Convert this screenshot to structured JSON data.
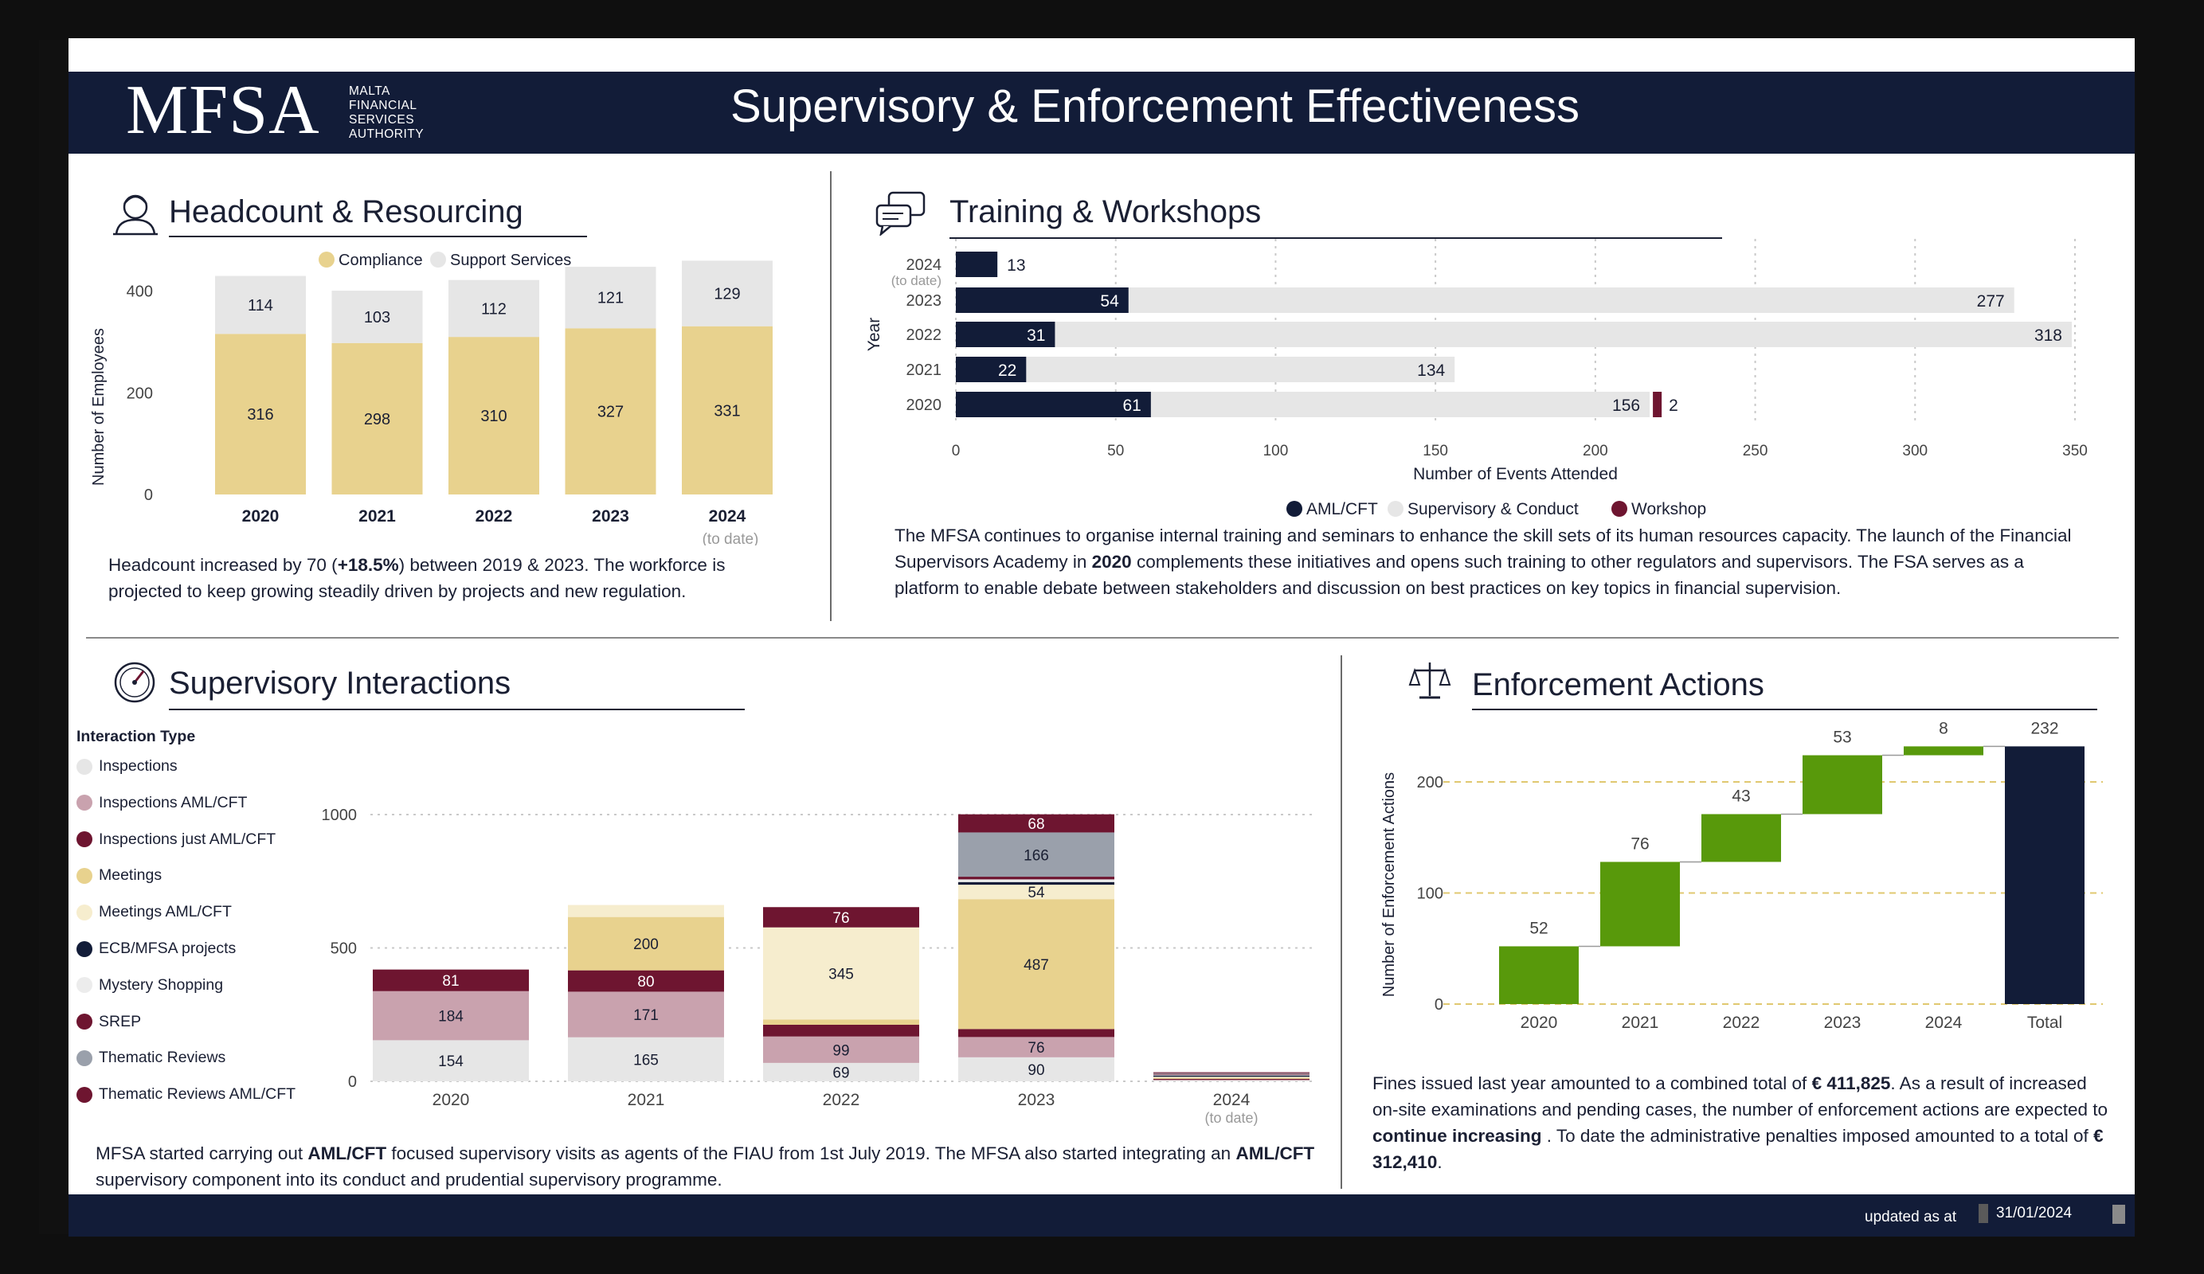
{
  "header": {
    "logo": "MFSA",
    "logo_sub": [
      "MALTA",
      "FINANCIAL",
      "SERVICES",
      "AUTHORITY"
    ],
    "title": "Supervisory & Enforcement Effectiveness"
  },
  "headcount": {
    "title": "Headcount & Resourcing",
    "icon": "person-icon",
    "paragraph_pre": "Headcount increased by 70 (",
    "paragraph_bold": "+18.5%",
    "paragraph_post": ") between 2019 & 2023. The workforce is projected to keep growing steadily driven by projects and new regulation."
  },
  "training": {
    "title": "Training & Workshops",
    "icon": "chat-icon",
    "paragraph_pre": "The MFSA continues to organise internal training and seminars to enhance the skill sets of its human resources capacity. The launch of the Financial Supervisors Academy in ",
    "paragraph_bold": "2020",
    "paragraph_post": " complements these initiatives and opens such training to other regulators and supervisors. The FSA serves as a platform to enable debate between stakeholders and discussion on best practices on key topics in financial supervision."
  },
  "supervisory": {
    "title": "Supervisory Interactions",
    "icon": "gauge-icon",
    "legend_title": "Interaction Type",
    "paragraph_a": "MFSA started carrying out ",
    "paragraph_b": "AML/CFT",
    "paragraph_c": " focused supervisory visits as agents of the FIAU from 1st July 2019. The MFSA also started integrating an ",
    "paragraph_d": "AML/CFT",
    "paragraph_e": " supervisory component into its conduct and prudential supervisory programme."
  },
  "enforcement": {
    "title": "Enforcement Actions",
    "icon": "scales-icon",
    "p1": "Fines issued last year amounted to a combined total of ",
    "p2": "€ 411,825",
    "p3": ". As a result of increased on-site examinations and pending cases, the number of enforcement actions are expected to ",
    "p4": "continue increasing",
    "p5": " . To date the administrative penalties imposed amounted to a total of ",
    "p6": "€ 312,410",
    "p7": "."
  },
  "footer": {
    "label": "updated as at",
    "date": "31/01/2024"
  },
  "colors": {
    "navy": "#121c38",
    "gold": "#e8d28e",
    "lightgray": "#e6e6e6",
    "maroon": "#6e1530",
    "pink": "#c9a2ae",
    "cream": "#f6edce",
    "slate": "#9aa0ab",
    "green": "#58990b"
  },
  "chart_data": [
    {
      "id": "headcount",
      "type": "bar",
      "stacked": true,
      "categories": [
        "2020",
        "2021",
        "2022",
        "2023",
        "2024"
      ],
      "category_notes": [
        "",
        "",
        "",
        "",
        "(to date)"
      ],
      "series": [
        {
          "name": "Compliance",
          "color": "#e8d28e",
          "values": [
            316,
            298,
            310,
            327,
            331
          ]
        },
        {
          "name": "Support Services",
          "color": "#e6e6e6",
          "values": [
            114,
            103,
            112,
            121,
            129
          ]
        }
      ],
      "ylabel": "Number of Employees",
      "yticks": [
        0,
        200,
        400
      ],
      "ylim": [
        0,
        470
      ],
      "legend": "top-center"
    },
    {
      "id": "training",
      "type": "bar",
      "orientation": "horizontal",
      "categories": [
        "2024",
        "2023",
        "2022",
        "2021",
        "2020"
      ],
      "category_notes": [
        "(to date)",
        "",
        "",
        "",
        ""
      ],
      "series": [
        {
          "name": "AML/CFT",
          "color": "#121c38",
          "values": [
            13,
            54,
            31,
            22,
            61
          ]
        },
        {
          "name": "Supervisory & Conduct",
          "color": "#e6e6e6",
          "values": [
            null,
            277,
            318,
            134,
            156
          ]
        },
        {
          "name": "Workshop",
          "color": "#6e1530",
          "values": [
            null,
            null,
            null,
            null,
            2
          ]
        }
      ],
      "xlabel": "Number of Events Attended",
      "ylabel": "Year",
      "xticks": [
        0,
        50,
        100,
        150,
        200,
        250,
        300,
        350
      ],
      "xlim": [
        0,
        350
      ],
      "grid": true,
      "legend": "bottom-center"
    },
    {
      "id": "supervisory",
      "type": "bar",
      "stacked": true,
      "categories": [
        "2020",
        "2021",
        "2022",
        "2023",
        "2024"
      ],
      "category_notes": [
        "",
        "",
        "",
        "",
        "(to date)"
      ],
      "series": [
        {
          "name": "Inspections",
          "color": "#e6e6e6",
          "values": [
            154,
            165,
            69,
            90,
            3
          ]
        },
        {
          "name": "Inspections  AML/CFT",
          "color": "#c9a2ae",
          "values": [
            184,
            171,
            99,
            76,
            3
          ]
        },
        {
          "name": "Inspections just AML/CFT",
          "color": "#6e1530",
          "values": [
            81,
            80,
            44,
            30,
            3
          ]
        },
        {
          "name": "Meetings",
          "color": "#e8d28e",
          "values": [
            0,
            200,
            20,
            487,
            4
          ]
        },
        {
          "name": "Meetings  AML/CFT",
          "color": "#f6edce",
          "values": [
            0,
            45,
            345,
            54,
            4
          ]
        },
        {
          "name": "ECB/MFSA projects",
          "color": "#121c38",
          "values": [
            0,
            0,
            0,
            10,
            5
          ]
        },
        {
          "name": "Mystery Shopping",
          "color": "#ececec",
          "values": [
            0,
            0,
            0,
            10,
            3
          ]
        },
        {
          "name": "SREP",
          "color": "#6e1530",
          "values": [
            0,
            0,
            76,
            10,
            3
          ]
        },
        {
          "name": "Thematic Reviews",
          "color": "#9aa0ab",
          "values": [
            0,
            0,
            0,
            166,
            3
          ]
        },
        {
          "name": "Thematic Reviews   AML/CFT",
          "color": "#6e1530",
          "values": [
            0,
            0,
            0,
            68,
            3
          ]
        }
      ],
      "labels_shown": {
        "2020": [
          154,
          184,
          81
        ],
        "2021": [
          165,
          171,
          80,
          200
        ],
        "2022": [
          69,
          99,
          345,
          76
        ],
        "2023": [
          90,
          76,
          487,
          54,
          166,
          68
        ]
      },
      "yticks": [
        0,
        500,
        1000
      ],
      "ylim": [
        0,
        1080
      ],
      "legend": "left"
    },
    {
      "id": "enforcement",
      "type": "waterfall",
      "categories": [
        "2020",
        "2021",
        "2022",
        "2023",
        "2024",
        "Total"
      ],
      "values": [
        52,
        76,
        43,
        53,
        8,
        232
      ],
      "ylabel": "Number of Enforcement Actions",
      "yticks": [
        0,
        100,
        200
      ],
      "ylim": [
        0,
        255
      ],
      "grid": true
    }
  ]
}
